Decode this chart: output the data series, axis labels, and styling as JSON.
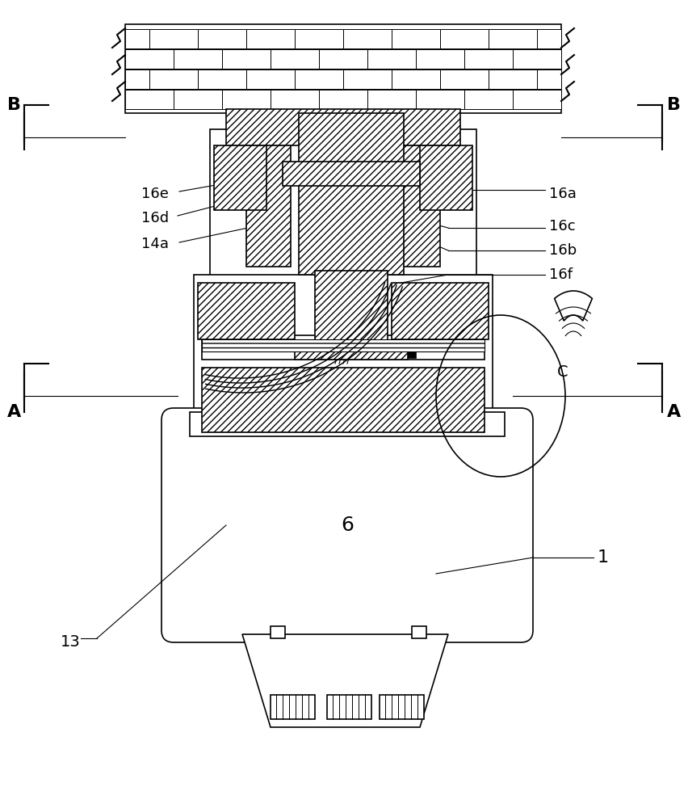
{
  "bg_color": "#ffffff",
  "line_color": "#000000",
  "hatch_color": "#000000",
  "title": "",
  "labels": {
    "B_left": "B",
    "B_right": "B",
    "A_left": "A",
    "A_right": "A",
    "C": "C",
    "16a": "16a",
    "16b": "16b",
    "16c": "16c",
    "16d": "16d",
    "16e": "16e",
    "16f": "16f",
    "14a": "14a",
    "6": "6",
    "1": "1",
    "13": "13"
  },
  "figsize": [
    8.53,
    10.0
  ],
  "dpi": 100
}
